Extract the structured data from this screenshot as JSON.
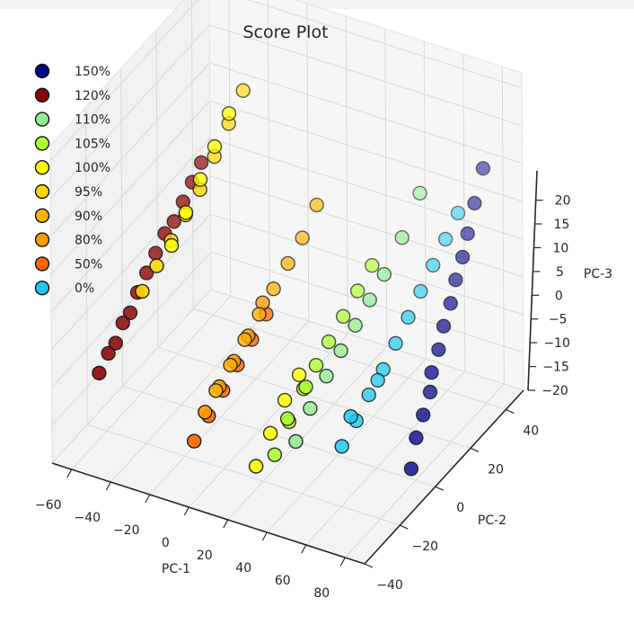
{
  "chart_data": {
    "type": "scatter",
    "projection": "3d",
    "title": "Score Plot",
    "xlabel": "PC-1",
    "ylabel": "PC-2",
    "zlabel": "PC-3",
    "xticks": [
      "−60",
      "−40",
      "−20",
      "0",
      "20",
      "40",
      "60",
      "80"
    ],
    "yticks": [
      "−40",
      "−20",
      "0",
      "20",
      "40"
    ],
    "zticks": [
      "−20",
      "−15",
      "−10",
      "−5",
      "0",
      "5",
      "10",
      "15",
      "20"
    ],
    "xlim": [
      -70,
      90
    ],
    "ylim": [
      -40,
      50
    ],
    "zlim": [
      -20,
      22
    ],
    "grid": true,
    "legend_position": "upper-left",
    "series": [
      {
        "name": "150%",
        "color": "#00008b",
        "points": [
          [
            85,
            -8,
            -16
          ],
          [
            84,
            -4,
            -13
          ],
          [
            84,
            0,
            -11
          ],
          [
            84,
            4,
            -9
          ],
          [
            83,
            6,
            -7
          ],
          [
            83,
            10,
            -5
          ],
          [
            82,
            14,
            -3
          ],
          [
            82,
            18,
            -1
          ],
          [
            81,
            22,
            1
          ],
          [
            81,
            26,
            3
          ],
          [
            80,
            30,
            5
          ],
          [
            80,
            34,
            8
          ],
          [
            79,
            40,
            11
          ]
        ]
      },
      {
        "name": "120%",
        "color": "#8b0000",
        "points": [
          [
            -62,
            -22,
            -12
          ],
          [
            -60,
            -19,
            -10
          ],
          [
            -58,
            -17,
            -9
          ],
          [
            -57,
            -14,
            -7
          ],
          [
            -55,
            -12,
            -6
          ],
          [
            -54,
            -9,
            -4
          ],
          [
            -52,
            -6,
            -2
          ],
          [
            -50,
            -3,
            0
          ],
          [
            -48,
            0,
            2
          ],
          [
            -46,
            3,
            3
          ],
          [
            -44,
            6,
            5
          ],
          [
            -42,
            9,
            7
          ],
          [
            -40,
            12,
            9
          ]
        ]
      },
      {
        "name": "110%",
        "color": "#90ee90",
        "points": [
          [
            35,
            -18,
            -14
          ],
          [
            37,
            -12,
            -11
          ],
          [
            40,
            -6,
            -8
          ],
          [
            42,
            0,
            -6
          ],
          [
            44,
            6,
            -4
          ],
          [
            46,
            12,
            -2
          ],
          [
            48,
            18,
            0
          ],
          [
            50,
            26,
            3
          ],
          [
            52,
            34,
            7
          ]
        ]
      },
      {
        "name": "105%",
        "color": "#adff2f",
        "points": [
          [
            26,
            -20,
            -16
          ],
          [
            28,
            -14,
            -13
          ],
          [
            30,
            -8,
            -10
          ],
          [
            32,
            -3,
            -8
          ],
          [
            34,
            2,
            -6
          ],
          [
            36,
            8,
            -4
          ],
          [
            38,
            14,
            -2
          ],
          [
            40,
            20,
            0
          ],
          [
            33,
            -10,
            -9
          ],
          [
            29,
            -16,
            -12
          ]
        ]
      },
      {
        "name": "100%",
        "color": "#ffff00",
        "points": [
          [
            20,
            -24,
            -17
          ],
          [
            22,
            -18,
            -14
          ],
          [
            24,
            -12,
            -11
          ],
          [
            26,
            -6,
            -9
          ],
          [
            -30,
            -16,
            6
          ],
          [
            -28,
            -10,
            9
          ],
          [
            -26,
            -4,
            12
          ],
          [
            -24,
            2,
            15
          ],
          [
            -22,
            8,
            18
          ]
        ]
      },
      {
        "name": "95%",
        "color": "#ffd700",
        "points": [
          [
            -36,
            -26,
            2
          ],
          [
            -34,
            -20,
            4
          ],
          [
            -32,
            -14,
            6
          ],
          [
            -30,
            -8,
            8
          ],
          [
            -28,
            -2,
            10
          ],
          [
            -26,
            4,
            13
          ],
          [
            -24,
            10,
            16
          ],
          [
            -22,
            16,
            19
          ]
        ]
      },
      {
        "name": "90%",
        "color": "#ffb000",
        "points": [
          [
            -4,
            -20,
            -10
          ],
          [
            -2,
            -14,
            -8
          ],
          [
            0,
            -8,
            -6
          ],
          [
            2,
            -2,
            -4
          ],
          [
            4,
            4,
            -2
          ],
          [
            6,
            10,
            0
          ],
          [
            8,
            16,
            2
          ],
          [
            10,
            22,
            5
          ]
        ]
      },
      {
        "name": "80%",
        "color": "#ff9a00",
        "points": [
          [
            -6,
            -24,
            -12
          ],
          [
            -4,
            -18,
            -10
          ],
          [
            -2,
            -12,
            -8
          ],
          [
            0,
            -6,
            -6
          ],
          [
            2,
            0,
            -3
          ]
        ]
      },
      {
        "name": "50%",
        "color": "#ff6600",
        "points": [
          [
            -8,
            -28,
            -15
          ],
          [
            -6,
            -22,
            -13
          ],
          [
            -4,
            -16,
            -11
          ],
          [
            -2,
            -10,
            -9
          ],
          [
            0,
            -4,
            -7
          ],
          [
            2,
            2,
            -5
          ]
        ]
      },
      {
        "name": "0%",
        "color": "#1fc8ee",
        "points": [
          [
            55,
            -14,
            -14
          ],
          [
            57,
            -8,
            -12
          ],
          [
            58,
            -2,
            -10
          ],
          [
            60,
            4,
            -8
          ],
          [
            61,
            10,
            -6
          ],
          [
            62,
            16,
            -4
          ],
          [
            63,
            22,
            -2
          ],
          [
            64,
            28,
            0
          ],
          [
            65,
            34,
            2
          ],
          [
            66,
            40,
            4
          ],
          [
            56,
            -10,
            -11
          ],
          [
            59,
            2,
            -9
          ]
        ]
      }
    ]
  }
}
